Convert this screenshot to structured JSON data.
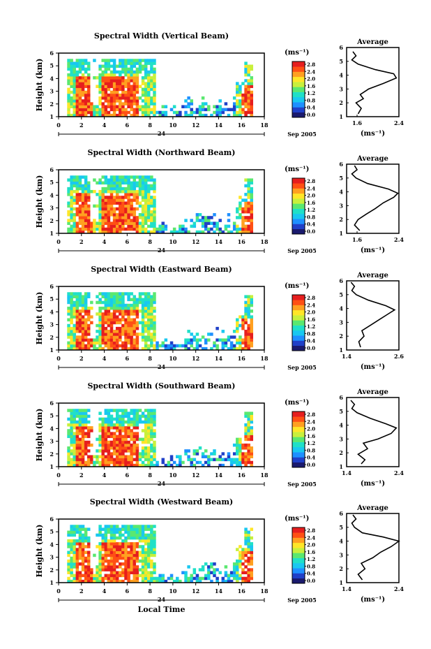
{
  "chart_data": [
    {
      "type": "heatmap",
      "title": "Spectral Width (Vertical Beam)",
      "ylabel": "Height (km)",
      "ylim": [
        1,
        6
      ],
      "yticks": [
        "1",
        "2",
        "3",
        "4",
        "5",
        "6"
      ],
      "xlim": [
        0,
        18
      ],
      "xticks": [
        "0",
        "2",
        "4",
        "6",
        "8",
        "10",
        "12",
        "14",
        "16",
        "18"
      ],
      "date_marker": "24",
      "date_label": "Sep 2005",
      "colorbar": {
        "unit": "(ms⁻¹)",
        "ticks": [
          "0.0",
          "0.4",
          "0.8",
          "1.2",
          "1.6",
          "2.0",
          "2.4",
          "2.8"
        ],
        "range": [
          0.0,
          2.8
        ]
      },
      "average_profile": {
        "title": "Average",
        "xlabel": "(ms⁻¹)",
        "xlim": [
          1.4,
          2.4
        ],
        "xticks": [
          "1.6",
          "2.4"
        ],
        "ylim": [
          1,
          6
        ],
        "yticks": [
          "1",
          "2",
          "3",
          "4",
          "5",
          "6"
        ],
        "height": [
          1.2,
          1.6,
          2.0,
          2.3,
          2.6,
          3.0,
          3.4,
          3.8,
          4.1,
          4.4,
          4.8,
          5.1,
          5.4,
          5.7
        ],
        "value": [
          1.62,
          1.68,
          1.58,
          1.72,
          1.66,
          1.82,
          2.1,
          2.35,
          2.3,
          1.95,
          1.62,
          1.5,
          1.58,
          1.52
        ]
      }
    },
    {
      "type": "heatmap",
      "title": "Spectral Width (Northward Beam)",
      "ylabel": "Height (km)",
      "ylim": [
        1,
        6
      ],
      "yticks": [
        "1",
        "2",
        "3",
        "4",
        "5",
        "6"
      ],
      "xlim": [
        0,
        18
      ],
      "xticks": [
        "0",
        "2",
        "4",
        "6",
        "8",
        "10",
        "12",
        "14",
        "16",
        "18"
      ],
      "date_marker": "24",
      "date_label": "Sep 2005",
      "colorbar": {
        "unit": "(ms⁻¹)",
        "ticks": [
          "0.0",
          "0.4",
          "0.8",
          "1.2",
          "1.6",
          "2.0",
          "2.4",
          "2.8"
        ],
        "range": [
          0.0,
          2.8
        ]
      },
      "average_profile": {
        "title": "Average",
        "xlabel": "(ms⁻¹)",
        "xlim": [
          1.4,
          2.4
        ],
        "xticks": [
          "1.6",
          "2.4"
        ],
        "ylim": [
          1,
          6
        ],
        "yticks": [
          "1",
          "2",
          "3",
          "4",
          "5",
          "6"
        ],
        "height": [
          1.2,
          1.6,
          2.0,
          2.4,
          2.8,
          3.2,
          3.6,
          3.9,
          4.2,
          4.6,
          5.0,
          5.3,
          5.6,
          5.9
        ],
        "value": [
          1.65,
          1.55,
          1.62,
          1.78,
          1.95,
          2.1,
          2.3,
          2.38,
          2.2,
          1.8,
          1.58,
          1.5,
          1.6,
          1.55
        ]
      }
    },
    {
      "type": "heatmap",
      "title": "Spectral Width (Eastward Beam)",
      "ylabel": "Height (km)",
      "ylim": [
        1,
        6
      ],
      "yticks": [
        "1",
        "2",
        "3",
        "4",
        "5",
        "6"
      ],
      "xlim": [
        0,
        18
      ],
      "xticks": [
        "0",
        "2",
        "4",
        "6",
        "8",
        "10",
        "12",
        "14",
        "16",
        "18"
      ],
      "date_marker": "24",
      "date_label": "Sep 2005",
      "colorbar": {
        "unit": "(ms⁻¹)",
        "ticks": [
          "0.0",
          "0.4",
          "0.8",
          "1.2",
          "1.6",
          "2.0",
          "2.4",
          "2.8"
        ],
        "range": [
          0.0,
          2.8
        ]
      },
      "average_profile": {
        "title": "Average",
        "xlabel": "(ms⁻¹)",
        "xlim": [
          1.4,
          2.6
        ],
        "xticks": [
          "1.4",
          "2.6"
        ],
        "ylim": [
          1,
          6
        ],
        "yticks": [
          "1",
          "2",
          "3",
          "4",
          "5",
          "6"
        ],
        "height": [
          1.2,
          1.6,
          2.0,
          2.4,
          2.8,
          3.2,
          3.6,
          3.9,
          4.2,
          4.6,
          5.0,
          5.3,
          5.6,
          5.9
        ],
        "value": [
          1.72,
          1.68,
          1.8,
          1.75,
          1.95,
          2.15,
          2.35,
          2.5,
          2.3,
          1.9,
          1.62,
          1.52,
          1.58,
          1.5
        ]
      }
    },
    {
      "type": "heatmap",
      "title": "Spectral Width (Southward Beam)",
      "ylabel": "Height (km)",
      "ylim": [
        1,
        6
      ],
      "yticks": [
        "1",
        "2",
        "3",
        "4",
        "5",
        "6"
      ],
      "xlim": [
        0,
        18
      ],
      "xticks": [
        "0",
        "2",
        "4",
        "6",
        "8",
        "10",
        "12",
        "14",
        "16",
        "18"
      ],
      "date_marker": "24",
      "date_label": "Sep 2005",
      "colorbar": {
        "unit": "(ms⁻¹)",
        "ticks": [
          "0.0",
          "0.4",
          "0.8",
          "1.2",
          "1.6",
          "2.0",
          "2.4",
          "2.8"
        ],
        "range": [
          0.0,
          2.8
        ]
      },
      "average_profile": {
        "title": "Average",
        "xlabel": "(ms⁻¹)",
        "xlim": [
          1.4,
          2.4
        ],
        "xticks": [
          "1.4",
          "2.4"
        ],
        "ylim": [
          1,
          6
        ],
        "yticks": [
          "1",
          "2",
          "3",
          "4",
          "5",
          "6"
        ],
        "height": [
          1.2,
          1.5,
          1.9,
          2.3,
          2.7,
          3.0,
          3.4,
          3.8,
          4.1,
          4.5,
          4.9,
          5.2,
          5.5,
          5.8
        ],
        "value": [
          1.68,
          1.75,
          1.62,
          1.8,
          1.72,
          2.0,
          2.25,
          2.35,
          2.15,
          1.85,
          1.6,
          1.5,
          1.55,
          1.48
        ]
      }
    },
    {
      "type": "heatmap",
      "title": "Spectral Width (Westward Beam)",
      "ylabel": "Height (km)",
      "ylim": [
        1,
        6
      ],
      "yticks": [
        "1",
        "2",
        "3",
        "4",
        "5",
        "6"
      ],
      "xlim": [
        0,
        18
      ],
      "xticks": [
        "0",
        "2",
        "4",
        "6",
        "8",
        "10",
        "12",
        "14",
        "16",
        "18"
      ],
      "xlabel": "Local Time",
      "date_marker": "24",
      "date_label": "Sep 2005",
      "colorbar": {
        "unit": "(ms⁻¹)",
        "ticks": [
          "0.0",
          "0.4",
          "0.8",
          "1.2",
          "1.6",
          "2.0",
          "2.4",
          "2.8"
        ],
        "range": [
          0.0,
          2.8
        ]
      },
      "average_profile": {
        "title": "Average",
        "xlabel": "(ms⁻¹)",
        "xlim": [
          1.4,
          2.4
        ],
        "xticks": [
          "1.4",
          "2.4"
        ],
        "ylim": [
          1,
          6
        ],
        "yticks": [
          "1",
          "2",
          "3",
          "4",
          "5",
          "6"
        ],
        "height": [
          1.2,
          1.6,
          2.0,
          2.4,
          2.8,
          3.2,
          3.6,
          4.0,
          4.3,
          4.6,
          5.0,
          5.3,
          5.6,
          5.9
        ],
        "value": [
          1.7,
          1.62,
          1.75,
          1.68,
          1.9,
          2.05,
          2.25,
          2.4,
          2.1,
          1.7,
          1.55,
          1.5,
          1.58,
          1.52
        ]
      }
    }
  ],
  "colors": {
    "scale": [
      "#1a1a6e",
      "#2040c8",
      "#1e90ff",
      "#19c8f0",
      "#20e0c8",
      "#5ae870",
      "#c8f03c",
      "#ffe628",
      "#ffa020",
      "#ff5014",
      "#e61e1e"
    ],
    "axis": "#000000",
    "line": "#000000"
  }
}
